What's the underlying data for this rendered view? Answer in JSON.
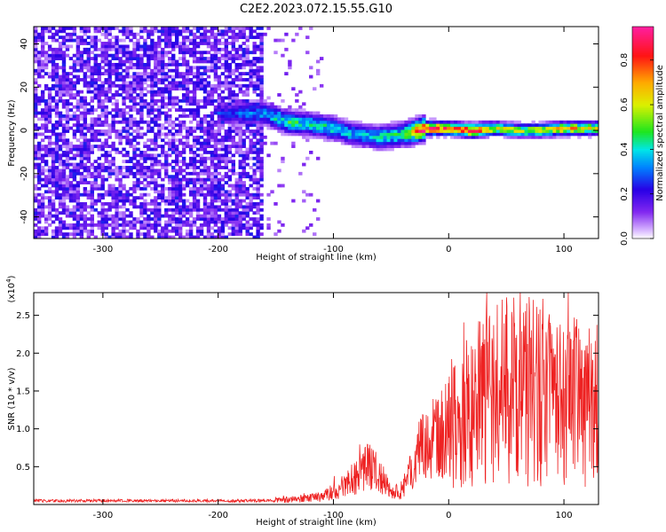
{
  "figure_title": "C2E2.2023.072.15.55.G10",
  "colors": {
    "snr_line": "#ee2222",
    "frame": "#000000"
  },
  "chart_data": [
    {
      "type": "heatmap",
      "xlabel": "Height of straight line (km)",
      "ylabel": "Frequency (Hz)",
      "xlim": [
        -360,
        130
      ],
      "ylim": [
        -50,
        48
      ],
      "x_ticks": [
        -300,
        -200,
        -100,
        0,
        100
      ],
      "x_tick_labels": [
        "-300",
        "-200",
        "-100",
        "0",
        "100"
      ],
      "y_ticks": [
        -40,
        -20,
        0,
        20,
        40
      ],
      "y_tick_labels": [
        "-40",
        "-20",
        "0",
        "20",
        "40"
      ],
      "colorbar": {
        "label": "Normalized spectral amplitude",
        "range": [
          0.0,
          0.95
        ],
        "ticks": [
          0.0,
          0.2,
          0.4,
          0.6,
          0.8
        ],
        "tick_labels": [
          "0.0",
          "0.2",
          "0.4",
          "0.6",
          "0.8"
        ]
      },
      "ridge": [
        {
          "x": -190,
          "f": 8.0,
          "amp": 0.25
        },
        {
          "x": -160,
          "f": 8.0,
          "amp": 0.35
        },
        {
          "x": -140,
          "f": 4.0,
          "amp": 0.45
        },
        {
          "x": -120,
          "f": 3.0,
          "amp": 0.4
        },
        {
          "x": -100,
          "f": 1.0,
          "amp": 0.4
        },
        {
          "x": -80,
          "f": -2.0,
          "amp": 0.35
        },
        {
          "x": -60,
          "f": -3.0,
          "amp": 0.4
        },
        {
          "x": -40,
          "f": -2.0,
          "amp": 0.45
        },
        {
          "x": -20,
          "f": 1.0,
          "amp": 0.9
        },
        {
          "x": 0,
          "f": 1.0,
          "amp": 0.75
        },
        {
          "x": 20,
          "f": 0.0,
          "amp": 0.85
        },
        {
          "x": 40,
          "f": 1.0,
          "amp": 0.6
        },
        {
          "x": 60,
          "f": 0.0,
          "amp": 0.55
        },
        {
          "x": 80,
          "f": 0.0,
          "amp": 0.6
        },
        {
          "x": 100,
          "f": 1.0,
          "amp": 0.7
        },
        {
          "x": 130,
          "f": 1.0,
          "amp": 0.6
        }
      ],
      "noise_region": {
        "x_from": -360,
        "x_to": -160,
        "amp": 0.15
      }
    },
    {
      "type": "line",
      "xlabel": "Height of straight line (km)",
      "ylabel": "SNR (10 * v/v)",
      "scale_label": "(x10",
      "scale_exponent": "4",
      "scale_close": ")",
      "xlim": [
        -360,
        130
      ],
      "ylim": [
        0,
        2.8
      ],
      "x_ticks": [
        -300,
        -200,
        -100,
        0,
        100
      ],
      "x_tick_labels": [
        "-300",
        "-200",
        "-100",
        "0",
        "100"
      ],
      "y_ticks": [
        0.5,
        1.0,
        1.5,
        2.0,
        2.5
      ],
      "y_tick_labels": [
        "0.5",
        "1.0",
        "1.5",
        "2.0",
        "2.5"
      ],
      "series": [
        {
          "name": "SNR",
          "envelope": [
            {
              "x": -360,
              "y": 0.05
            },
            {
              "x": -150,
              "y": 0.05
            },
            {
              "x": -110,
              "y": 0.1
            },
            {
              "x": -90,
              "y": 0.25
            },
            {
              "x": -70,
              "y": 0.5
            },
            {
              "x": -60,
              "y": 0.4
            },
            {
              "x": -50,
              "y": 0.15
            },
            {
              "x": -40,
              "y": 0.2
            },
            {
              "x": -25,
              "y": 0.7
            },
            {
              "x": -10,
              "y": 0.9
            },
            {
              "x": 0,
              "y": 1.0
            },
            {
              "x": 20,
              "y": 1.3
            },
            {
              "x": 40,
              "y": 1.5
            },
            {
              "x": 60,
              "y": 1.55
            },
            {
              "x": 80,
              "y": 1.5
            },
            {
              "x": 100,
              "y": 1.4
            },
            {
              "x": 120,
              "y": 1.3
            },
            {
              "x": 130,
              "y": 1.35
            }
          ]
        }
      ]
    }
  ]
}
